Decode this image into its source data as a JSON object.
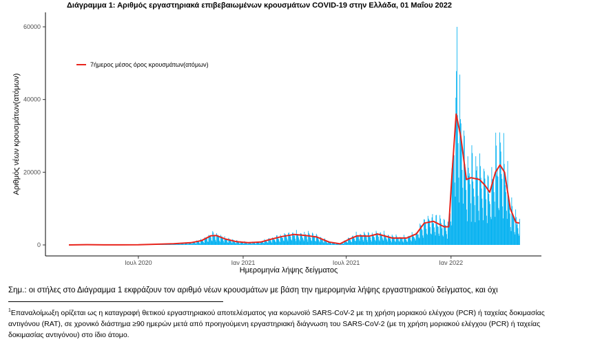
{
  "chart_data": {
    "type": "bar",
    "title": "Διάγραμμα 1: Αριθμός εργαστηριακά επιβεβαιωμένων κρουσμάτων COVID-19 στην Ελλάδα, 01 Μαΐου 2022",
    "xlabel": "Ημερομηνία λήψης δείγματος",
    "ylabel": "Αριθμός νέων κρουσμάτων(ατόμων)",
    "x_ticks": [
      "Ιουλ 2020",
      "Ιαν 2021",
      "Ιουλ 2021",
      "Ιαν 2022"
    ],
    "y_ticks": [
      0,
      20000,
      40000,
      60000
    ],
    "ylim": [
      -3000,
      65000
    ],
    "grid": false,
    "legend": {
      "position": "top-left",
      "entries": [
        "7ήμερος μέσος όρος κρουσμάτων(ατόμων)"
      ]
    },
    "bar_color": "#00b0f0",
    "line_color": "#e8231b",
    "smoothed_line": [
      {
        "x": "2020-03-01",
        "y": 0
      },
      {
        "x": "2020-04-01",
        "y": 80
      },
      {
        "x": "2020-05-01",
        "y": 20
      },
      {
        "x": "2020-06-01",
        "y": 10
      },
      {
        "x": "2020-07-01",
        "y": 30
      },
      {
        "x": "2020-08-01",
        "y": 180
      },
      {
        "x": "2020-09-01",
        "y": 320
      },
      {
        "x": "2020-10-01",
        "y": 600
      },
      {
        "x": "2020-10-20",
        "y": 1200
      },
      {
        "x": "2020-11-05",
        "y": 2500
      },
      {
        "x": "2020-11-15",
        "y": 2600
      },
      {
        "x": "2020-12-01",
        "y": 1600
      },
      {
        "x": "2020-12-20",
        "y": 900
      },
      {
        "x": "2021-01-10",
        "y": 600
      },
      {
        "x": "2021-02-01",
        "y": 800
      },
      {
        "x": "2021-02-20",
        "y": 1600
      },
      {
        "x": "2021-03-10",
        "y": 2300
      },
      {
        "x": "2021-04-01",
        "y": 2900
      },
      {
        "x": "2021-04-20",
        "y": 2600
      },
      {
        "x": "2021-05-10",
        "y": 2200
      },
      {
        "x": "2021-06-01",
        "y": 800
      },
      {
        "x": "2021-06-20",
        "y": 300
      },
      {
        "x": "2021-07-05",
        "y": 1500
      },
      {
        "x": "2021-07-20",
        "y": 2500
      },
      {
        "x": "2021-08-10",
        "y": 2400
      },
      {
        "x": "2021-08-25",
        "y": 3000
      },
      {
        "x": "2021-09-20",
        "y": 1900
      },
      {
        "x": "2021-10-15",
        "y": 1900
      },
      {
        "x": "2021-11-01",
        "y": 3000
      },
      {
        "x": "2021-11-15",
        "y": 6000
      },
      {
        "x": "2021-12-01",
        "y": 6500
      },
      {
        "x": "2021-12-20",
        "y": 5000
      },
      {
        "x": "2021-12-28",
        "y": 5000
      },
      {
        "x": "2022-01-03",
        "y": 20000
      },
      {
        "x": "2022-01-10",
        "y": 36000
      },
      {
        "x": "2022-01-18",
        "y": 30000
      },
      {
        "x": "2022-01-28",
        "y": 18000
      },
      {
        "x": "2022-02-05",
        "y": 18500
      },
      {
        "x": "2022-02-20",
        "y": 18000
      },
      {
        "x": "2022-03-01",
        "y": 16500
      },
      {
        "x": "2022-03-10",
        "y": 14500
      },
      {
        "x": "2022-03-20",
        "y": 20000
      },
      {
        "x": "2022-03-28",
        "y": 22000
      },
      {
        "x": "2022-04-05",
        "y": 20000
      },
      {
        "x": "2022-04-15",
        "y": 10000
      },
      {
        "x": "2022-04-25",
        "y": 6200
      },
      {
        "x": "2022-05-01",
        "y": 6000
      }
    ],
    "bar_peak": {
      "x": "2022-01-11",
      "y": 60000
    }
  },
  "note": "Σημ.: οι στήλες στο Διάγραμμα 1 εκφράζουν τον αριθμό νέων κρουσμάτων με βάση την ημερομηνία λήψης εργαστηριακού δείγματος, και όχι",
  "footnote": {
    "marker": "1",
    "text": "Επαναλοίμωξη ορίζεται ως η καταγραφή θετικού εργαστηριακού αποτελέσματος για κορωνοϊό SARS-CoV-2 με τη χρήση μοριακού ελέγχου (PCR) ή ταχείας δοκιμασίας αντιγόνου (RAT), σε χρονικό διάστημα ≥90 ημερών μετά από προηγούμενη εργαστηριακή διάγνωση του SARS-CoV-2 (με τη χρήση μοριακού ελέγχου (PCR) ή ταχείας δοκιμασίας αντιγόνου) στο ίδιο άτομο."
  }
}
